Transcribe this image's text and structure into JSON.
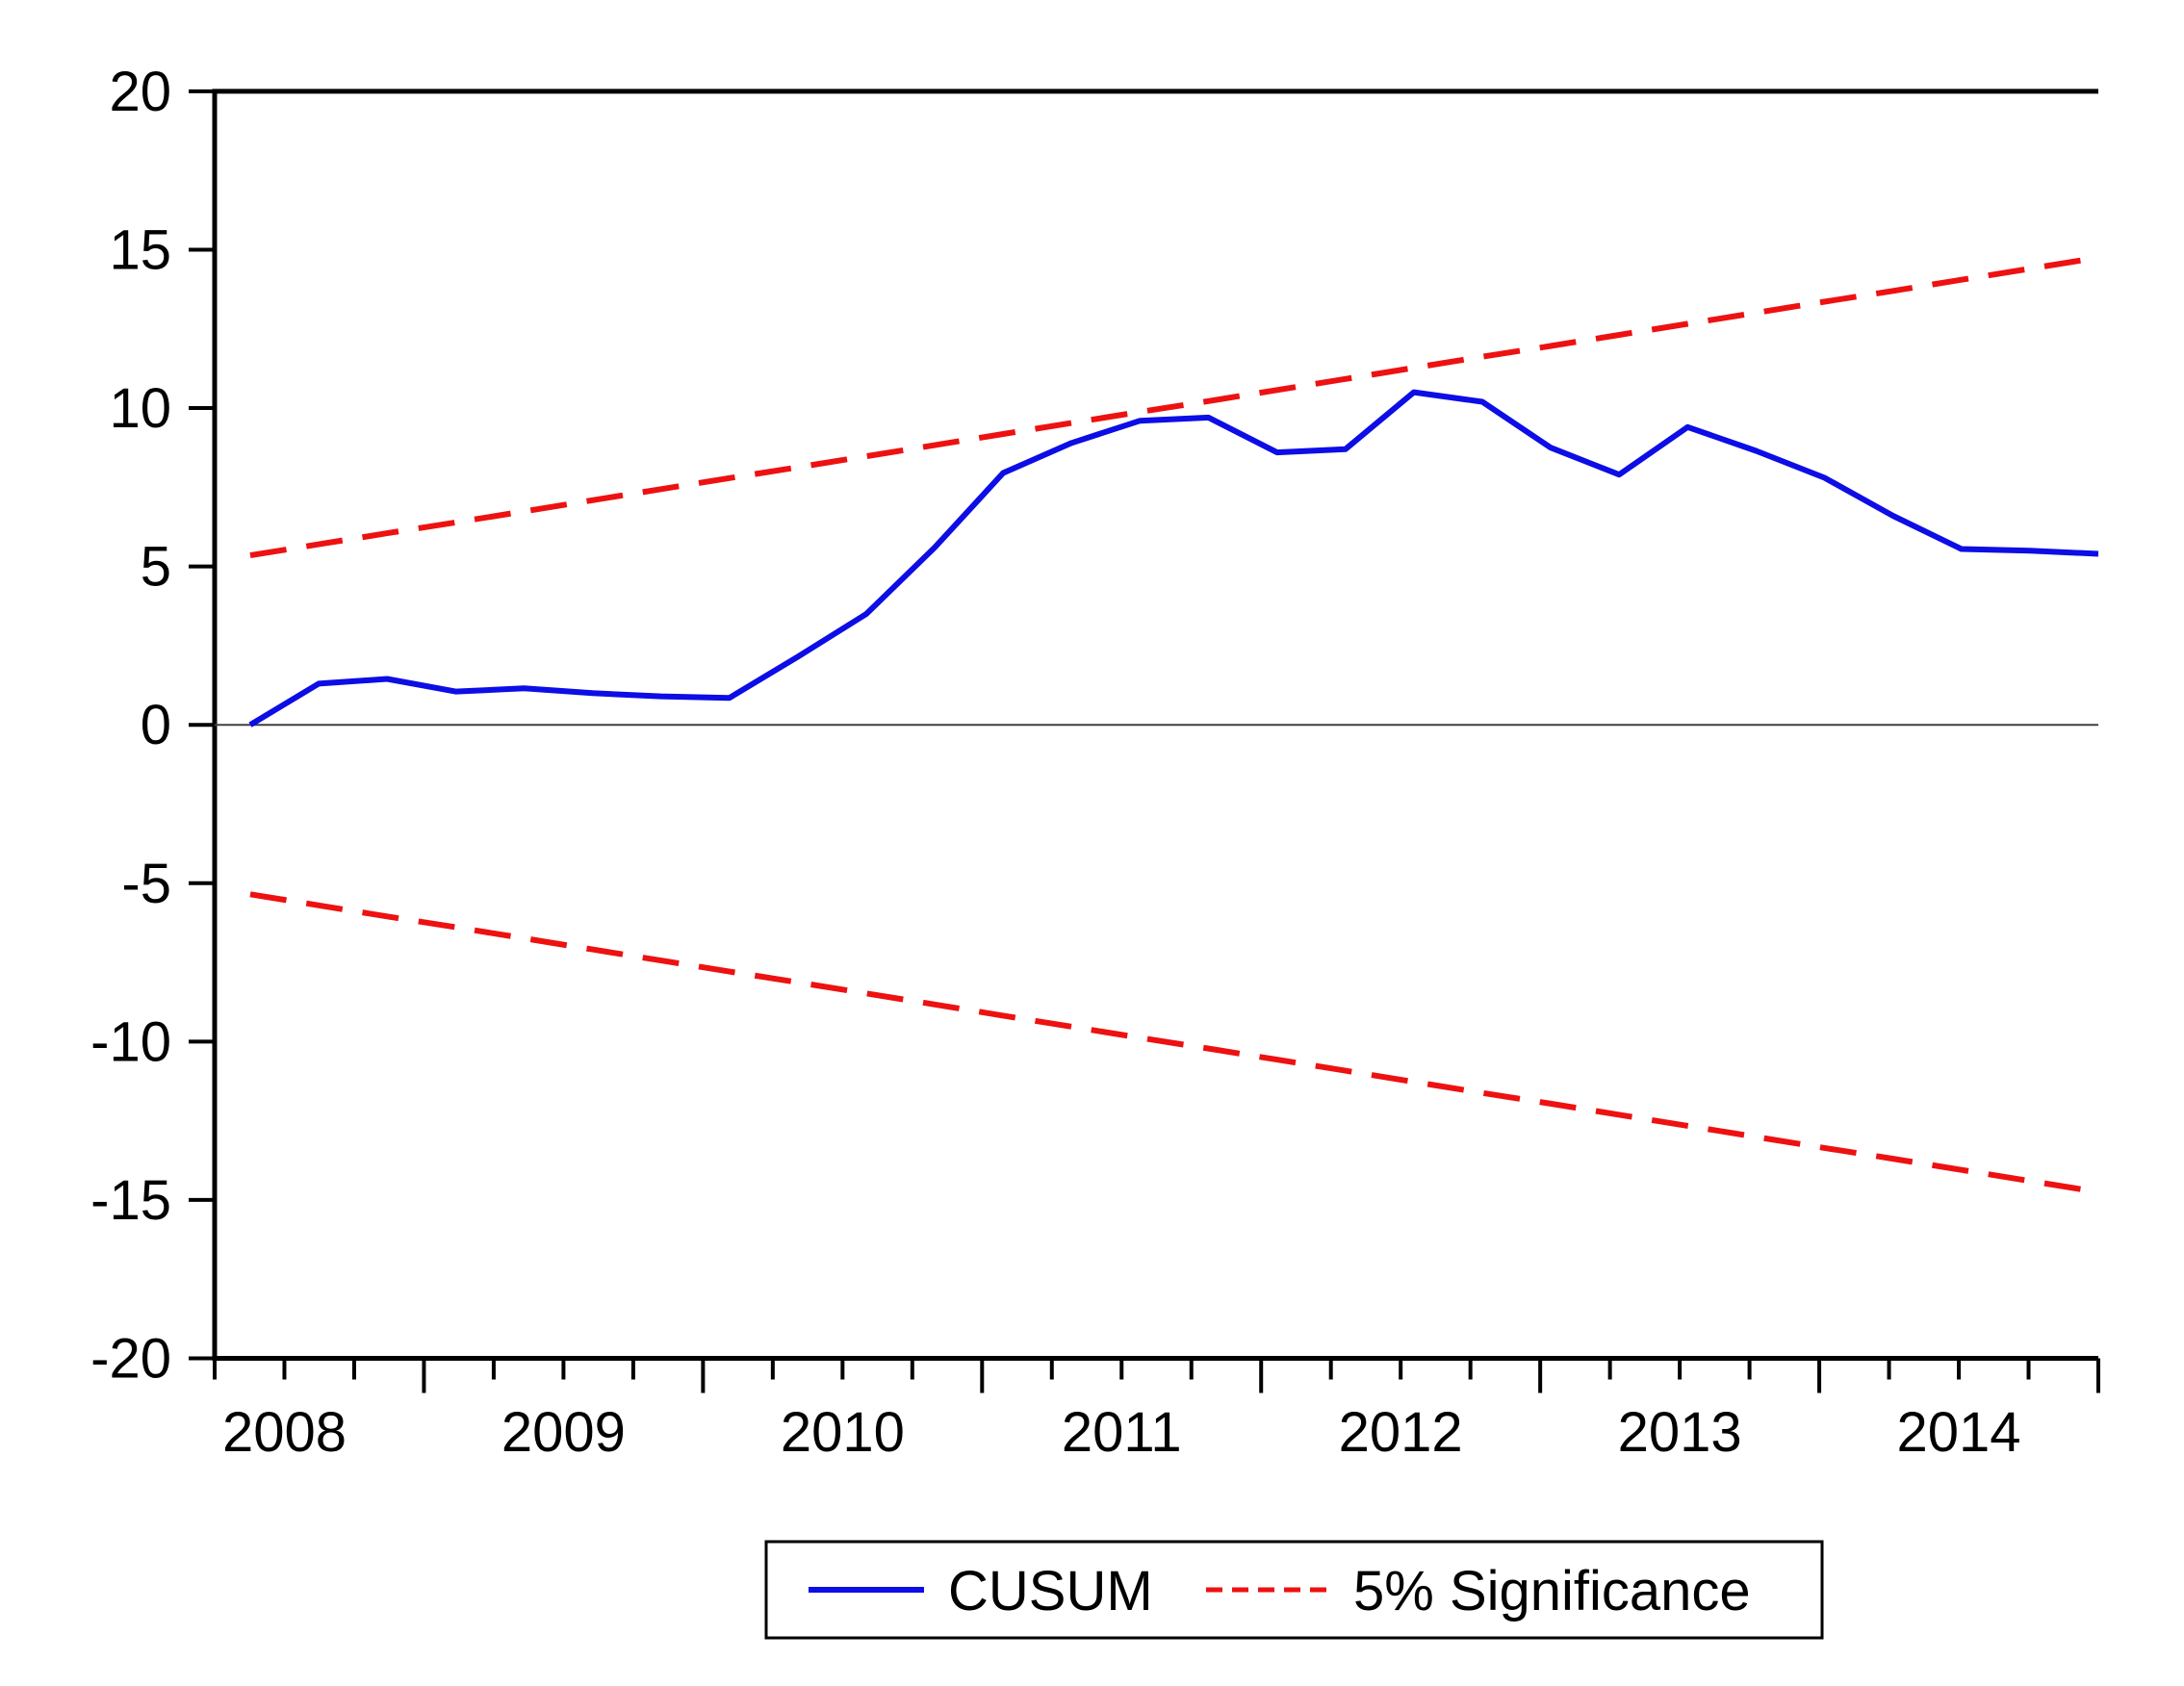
{
  "chart_data": {
    "type": "line",
    "title": "",
    "xlabel": "",
    "ylabel": "",
    "ylim": [
      -20,
      20
    ],
    "grid": false,
    "zero_line": true,
    "frame": "left-top-bottom (no right border)",
    "y_ticks": {
      "values": [
        20,
        15,
        10,
        5,
        0,
        -5,
        -10,
        -15,
        -20
      ],
      "labels": [
        "20",
        "15",
        "10",
        "5",
        "0",
        "-5",
        "-10",
        "-15",
        "-20"
      ]
    },
    "x_ticks": {
      "unit": "quarter",
      "year_labels": [
        "2008",
        "2009",
        "2010",
        "2011",
        "2012",
        "2013",
        "2014"
      ],
      "note": "short tick every quarter, long tick at each year boundary"
    },
    "x_quarters": [
      "2008Q1",
      "2008Q2",
      "2008Q3",
      "2008Q4",
      "2009Q1",
      "2009Q2",
      "2009Q3",
      "2009Q4",
      "2010Q1",
      "2010Q2",
      "2010Q3",
      "2010Q4",
      "2011Q1",
      "2011Q2",
      "2011Q3",
      "2011Q4",
      "2012Q1",
      "2012Q2",
      "2012Q3",
      "2012Q4",
      "2013Q1",
      "2013Q2",
      "2013Q3",
      "2013Q4",
      "2014Q1",
      "2014Q2",
      "2014Q3",
      "2014Q4"
    ],
    "series": [
      {
        "name": "CUSUM",
        "style": "solid",
        "color": "#0d0de6",
        "values": [
          0.0,
          1.3,
          1.45,
          1.05,
          1.15,
          1.0,
          0.9,
          0.85,
          2.15,
          3.5,
          5.6,
          7.95,
          8.9,
          9.6,
          9.7,
          8.6,
          8.7,
          10.5,
          10.2,
          8.75,
          7.9,
          9.4,
          8.65,
          7.8,
          6.6,
          5.55,
          5.5,
          5.4
        ]
      },
      {
        "name": "5% Significance (upper bound)",
        "style": "dashed",
        "color": "#ee1111",
        "values": [
          5.35,
          5.7,
          6.05,
          6.39,
          6.74,
          7.09,
          7.44,
          7.79,
          8.13,
          8.48,
          8.83,
          9.18,
          9.53,
          9.88,
          10.22,
          10.57,
          10.92,
          11.27,
          11.62,
          11.96,
          12.31,
          12.66,
          13.01,
          13.36,
          13.7,
          14.05,
          14.4,
          14.75
        ]
      },
      {
        "name": "5% Significance (lower bound)",
        "style": "dashed",
        "color": "#ee1111",
        "values": [
          -5.35,
          -5.7,
          -6.05,
          -6.39,
          -6.74,
          -7.09,
          -7.44,
          -7.79,
          -8.13,
          -8.48,
          -8.83,
          -9.18,
          -9.53,
          -9.88,
          -10.22,
          -10.57,
          -10.92,
          -11.27,
          -11.62,
          -11.96,
          -12.31,
          -12.66,
          -13.01,
          -13.36,
          -13.7,
          -14.05,
          -14.4,
          -14.75
        ]
      }
    ],
    "legend": {
      "position": "bottom-center",
      "items": [
        {
          "label": "CUSUM",
          "color": "#0d0de6",
          "style": "solid"
        },
        {
          "label": "5% Significance",
          "color": "#ee1111",
          "style": "dashed"
        }
      ]
    },
    "colors": {
      "cusum_blue": "#0d0de6",
      "significance_red": "#ee1111",
      "axis_black": "#000000",
      "zero_line_gray": "#404040",
      "background": "#ffffff"
    }
  }
}
